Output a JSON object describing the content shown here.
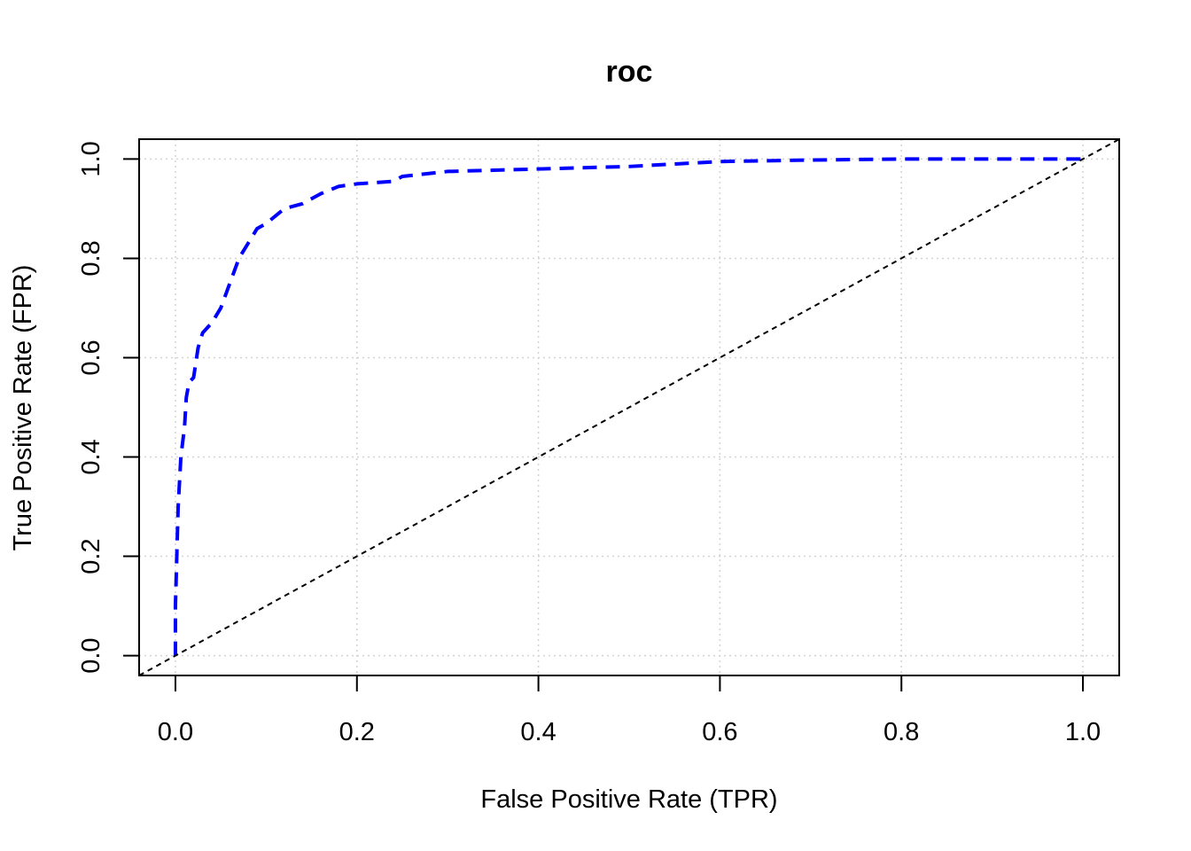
{
  "chart_data": {
    "type": "line",
    "title": "roc",
    "xlabel": "False Positive Rate (TPR)",
    "ylabel": "True Positive Rate (FPR)",
    "xlim": [
      -0.04,
      1.04
    ],
    "ylim": [
      -0.04,
      1.04
    ],
    "xticks": [
      "0.0",
      "0.2",
      "0.4",
      "0.6",
      "0.8",
      "1.0"
    ],
    "yticks": [
      "0.0",
      "0.2",
      "0.4",
      "0.6",
      "0.8",
      "1.0"
    ],
    "grid": true,
    "series": [
      {
        "style": "dashed",
        "color": "#0000ff",
        "x": [
          0.0,
          0.0,
          0.003,
          0.006,
          0.01,
          0.012,
          0.015,
          0.02,
          0.025,
          0.03,
          0.04,
          0.05,
          0.06,
          0.07,
          0.08,
          0.09,
          0.1,
          0.12,
          0.14,
          0.16,
          0.18,
          0.2,
          0.24,
          0.25,
          0.3,
          0.4,
          0.5,
          0.55,
          0.6,
          0.7,
          0.8,
          0.9,
          1.0
        ],
        "y": [
          0.0,
          0.1,
          0.3,
          0.4,
          0.46,
          0.52,
          0.55,
          0.56,
          0.62,
          0.65,
          0.67,
          0.7,
          0.75,
          0.8,
          0.83,
          0.86,
          0.87,
          0.9,
          0.91,
          0.93,
          0.945,
          0.95,
          0.955,
          0.965,
          0.975,
          0.98,
          0.985,
          0.99,
          0.995,
          0.998,
          1.0,
          1.0,
          1.0
        ]
      },
      {
        "style": "dashed-thin",
        "color": "#000000",
        "x": [
          -0.04,
          1.04
        ],
        "y": [
          -0.04,
          1.04
        ]
      }
    ]
  }
}
